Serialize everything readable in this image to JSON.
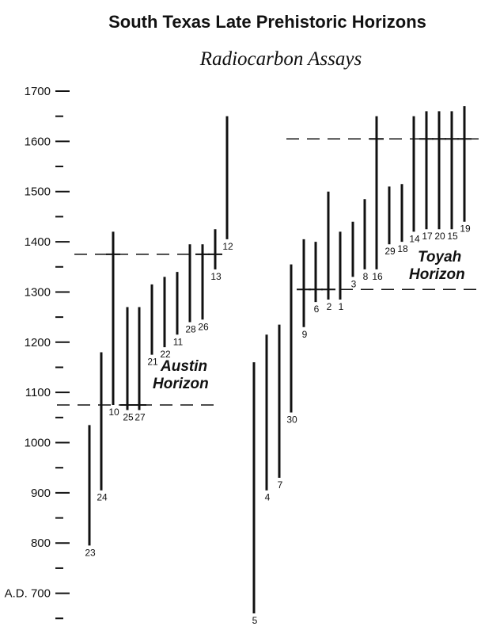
{
  "chart_data": {
    "type": "range",
    "title": "South Texas Late Prehistoric Horizons",
    "subtitle": "Radiocarbon Assays",
    "xlabel": "",
    "ylabel": "",
    "ylim": [
      650,
      1700
    ],
    "y_ticks": [
      {
        "value": 1700,
        "label": "1700"
      },
      {
        "value": 1600,
        "label": "1600"
      },
      {
        "value": 1500,
        "label": "1500"
      },
      {
        "value": 1400,
        "label": "1400"
      },
      {
        "value": 1300,
        "label": "1300"
      },
      {
        "value": 1200,
        "label": "1200"
      },
      {
        "value": 1100,
        "label": "1100"
      },
      {
        "value": 1000,
        "label": "1000"
      },
      {
        "value": 900,
        "label": "900"
      },
      {
        "value": 800,
        "label": "800"
      },
      {
        "value": 700,
        "label": "A.D. 700"
      }
    ],
    "groups": [
      {
        "name": "Austin Horizon",
        "range": [
          1075,
          1375
        ],
        "assays": [
          {
            "label": "23",
            "low": 795,
            "high": 1035,
            "mid": null
          },
          {
            "label": "24",
            "low": 905,
            "high": 1180,
            "mid": null
          },
          {
            "label": "10",
            "low": 1075,
            "high": 1420,
            "mid": 1375
          },
          {
            "label": "25",
            "low": 1065,
            "high": 1270,
            "mid": 1075
          },
          {
            "label": "27",
            "low": 1065,
            "high": 1270,
            "mid": 1075
          },
          {
            "label": "21",
            "low": 1175,
            "high": 1315,
            "mid": null
          },
          {
            "label": "22",
            "low": 1190,
            "high": 1330,
            "mid": null
          },
          {
            "label": "11",
            "low": 1215,
            "high": 1340,
            "mid": null
          },
          {
            "label": "28",
            "low": 1240,
            "high": 1395,
            "mid": null
          },
          {
            "label": "26",
            "low": 1245,
            "high": 1395,
            "mid": 1375
          },
          {
            "label": "13",
            "low": 1345,
            "high": 1425,
            "mid": 1375
          },
          {
            "label": "12",
            "low": 1405,
            "high": 1650,
            "mid": null
          }
        ]
      },
      {
        "name": "Toyah Horizon",
        "range": [
          1305,
          1605
        ],
        "assays": [
          {
            "label": "5",
            "low": 660,
            "high": 1160,
            "mid": null
          },
          {
            "label": "4",
            "low": 905,
            "high": 1215,
            "mid": null
          },
          {
            "label": "7",
            "low": 930,
            "high": 1235,
            "mid": null
          },
          {
            "label": "30",
            "low": 1060,
            "high": 1355,
            "mid": null
          },
          {
            "label": "9",
            "low": 1230,
            "high": 1405,
            "mid": 1305
          },
          {
            "label": "6",
            "low": 1280,
            "high": 1400,
            "mid": 1305
          },
          {
            "label": "2",
            "low": 1285,
            "high": 1500,
            "mid": 1305
          },
          {
            "label": "1",
            "low": 1285,
            "high": 1420,
            "mid": null
          },
          {
            "label": "3",
            "low": 1330,
            "high": 1440,
            "mid": null
          },
          {
            "label": "8",
            "low": 1345,
            "high": 1485,
            "mid": null
          },
          {
            "label": "16",
            "low": 1345,
            "high": 1650,
            "mid": 1605
          },
          {
            "label": "29",
            "low": 1395,
            "high": 1510,
            "mid": null
          },
          {
            "label": "18",
            "low": 1400,
            "high": 1515,
            "mid": null
          },
          {
            "label": "14",
            "low": 1420,
            "high": 1650,
            "mid": null
          },
          {
            "label": "17",
            "low": 1425,
            "high": 1660,
            "mid": 1605
          },
          {
            "label": "20",
            "low": 1425,
            "high": 1660,
            "mid": 1605
          },
          {
            "label": "15",
            "low": 1425,
            "high": 1660,
            "mid": 1605
          },
          {
            "label": "19",
            "low": 1440,
            "high": 1670,
            "mid": 1605
          }
        ]
      }
    ]
  }
}
